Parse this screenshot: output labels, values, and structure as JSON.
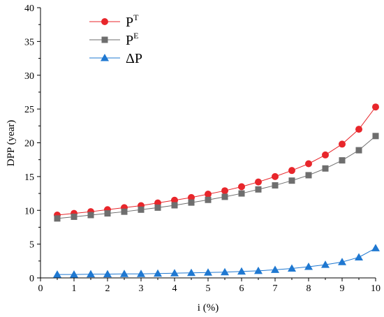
{
  "chart_data": {
    "type": "line",
    "xlabel": "i (%)",
    "ylabel": "DPP (year)",
    "xlim": [
      0,
      10
    ],
    "ylim": [
      0,
      40
    ],
    "x_ticks": [
      "0",
      "1",
      "2",
      "3",
      "4",
      "5",
      "6",
      "7",
      "8",
      "9",
      "10"
    ],
    "y_ticks": [
      "0",
      "5",
      "10",
      "15",
      "20",
      "25",
      "30",
      "35",
      "40"
    ],
    "grid": false,
    "legend_position": "top-left",
    "x": [
      0.5,
      1,
      1.5,
      2,
      2.5,
      3,
      3.5,
      4,
      4.5,
      5,
      5.5,
      6,
      6.5,
      7,
      7.5,
      8,
      8.5,
      9,
      9.5,
      10
    ],
    "series": [
      {
        "name": "P",
        "name_sup": "T",
        "color": "#e8262b",
        "marker": "circle",
        "values": [
          9.3,
          9.55,
          9.8,
          10.1,
          10.4,
          10.7,
          11.1,
          11.5,
          11.9,
          12.4,
          12.9,
          13.5,
          14.2,
          15.0,
          15.9,
          16.9,
          18.2,
          19.8,
          22.0,
          25.3
        ]
      },
      {
        "name": "P",
        "name_sup": "E",
        "color": "#6e6e6e",
        "marker": "square",
        "values": [
          8.8,
          9.05,
          9.3,
          9.55,
          9.8,
          10.1,
          10.4,
          10.75,
          11.15,
          11.55,
          12.0,
          12.5,
          13.1,
          13.7,
          14.4,
          15.2,
          16.2,
          17.4,
          18.9,
          21.0
        ]
      },
      {
        "name": "ΔP",
        "name_sup": "",
        "color": "#1f78d1",
        "marker": "triangle",
        "values": [
          0.5,
          0.5,
          0.55,
          0.55,
          0.6,
          0.6,
          0.65,
          0.7,
          0.75,
          0.8,
          0.85,
          0.95,
          1.05,
          1.2,
          1.4,
          1.65,
          1.95,
          2.35,
          3.05,
          4.4
        ]
      }
    ]
  }
}
